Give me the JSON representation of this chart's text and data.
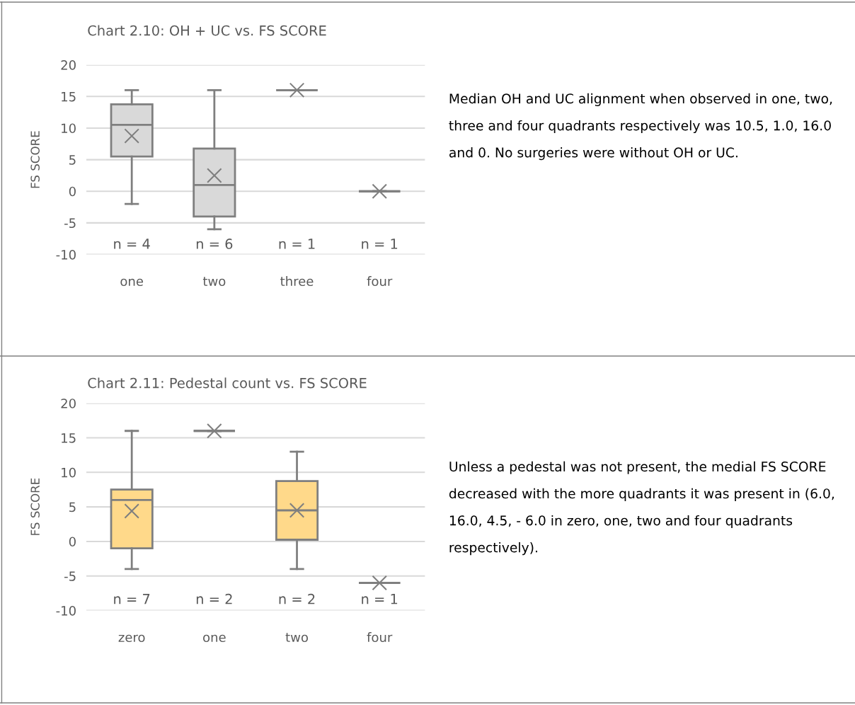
{
  "chart_data": [
    {
      "type": "box",
      "title": "Chart 2.10: OH + UC vs. FS SCORE",
      "ylabel": "FS SCORE",
      "categories": [
        "one",
        "two",
        "three",
        "four"
      ],
      "colors": [
        "#d9d9d9",
        "#d9d9d9",
        "#7f7f7f",
        "#7f7f7f"
      ],
      "ylim": [
        -10,
        20
      ],
      "yticks": [
        -10,
        -5,
        0,
        5,
        10,
        15,
        20
      ],
      "grid": "y",
      "marker": "cross",
      "boxes": [
        {
          "low": -2,
          "q1": 5.5,
          "median": 10.5,
          "q3": 13.75,
          "high": 16,
          "mean": 8.75
        },
        {
          "low": -6,
          "q1": -4,
          "median": 1,
          "q3": 6.75,
          "high": 16,
          "mean": 2.5
        },
        {
          "low": 16,
          "q1": 16,
          "median": 16,
          "q3": 16,
          "high": 16,
          "mean": 16
        },
        {
          "low": 0,
          "q1": 0,
          "median": 0,
          "q3": 0,
          "high": 0,
          "mean": 0
        }
      ],
      "annotations": [
        "n = 4",
        "n = 6",
        "n = 1",
        "n = 1",
        "Median OH and UC alignment when observed in one, two, three and four quadrants respectively was 10.5, 1.0, 16.0 and 0. No surgeries were without OH or UC."
      ]
    },
    {
      "type": "box",
      "title": "Chart 2.11: Pedestal count vs. FS SCORE",
      "ylabel": "FS SCORE",
      "categories": [
        "zero",
        "one",
        "two",
        "four"
      ],
      "colors": [
        "#ffd98a",
        "#7f7f7f",
        "#ffd98a",
        "#7f7f7f"
      ],
      "ylim": [
        -10,
        20
      ],
      "yticks": [
        -10,
        -5,
        0,
        5,
        10,
        15,
        20
      ],
      "grid": "y",
      "marker": "cross",
      "boxes": [
        {
          "low": -4,
          "q1": -1,
          "median": 6,
          "q3": 7.5,
          "high": 16,
          "mean": 4.4
        },
        {
          "low": 16,
          "q1": 16,
          "median": 16,
          "q3": 16,
          "high": 16,
          "mean": 16
        },
        {
          "low": -4,
          "q1": 0.25,
          "median": 4.5,
          "q3": 8.75,
          "high": 13,
          "mean": 4.5
        },
        {
          "low": -6,
          "q1": -6,
          "median": -6,
          "q3": -6,
          "high": -6,
          "mean": -6
        }
      ],
      "annotations": [
        "n = 7",
        "n = 2",
        "n = 2",
        "n = 1",
        "Unless a pedestal was not present, the medial FS SCORE decreased with the more quadrants it was present in (6.0, 16.0, 4.5, - 6.0 in zero, one, two and four quadrants respectively)."
      ]
    }
  ]
}
